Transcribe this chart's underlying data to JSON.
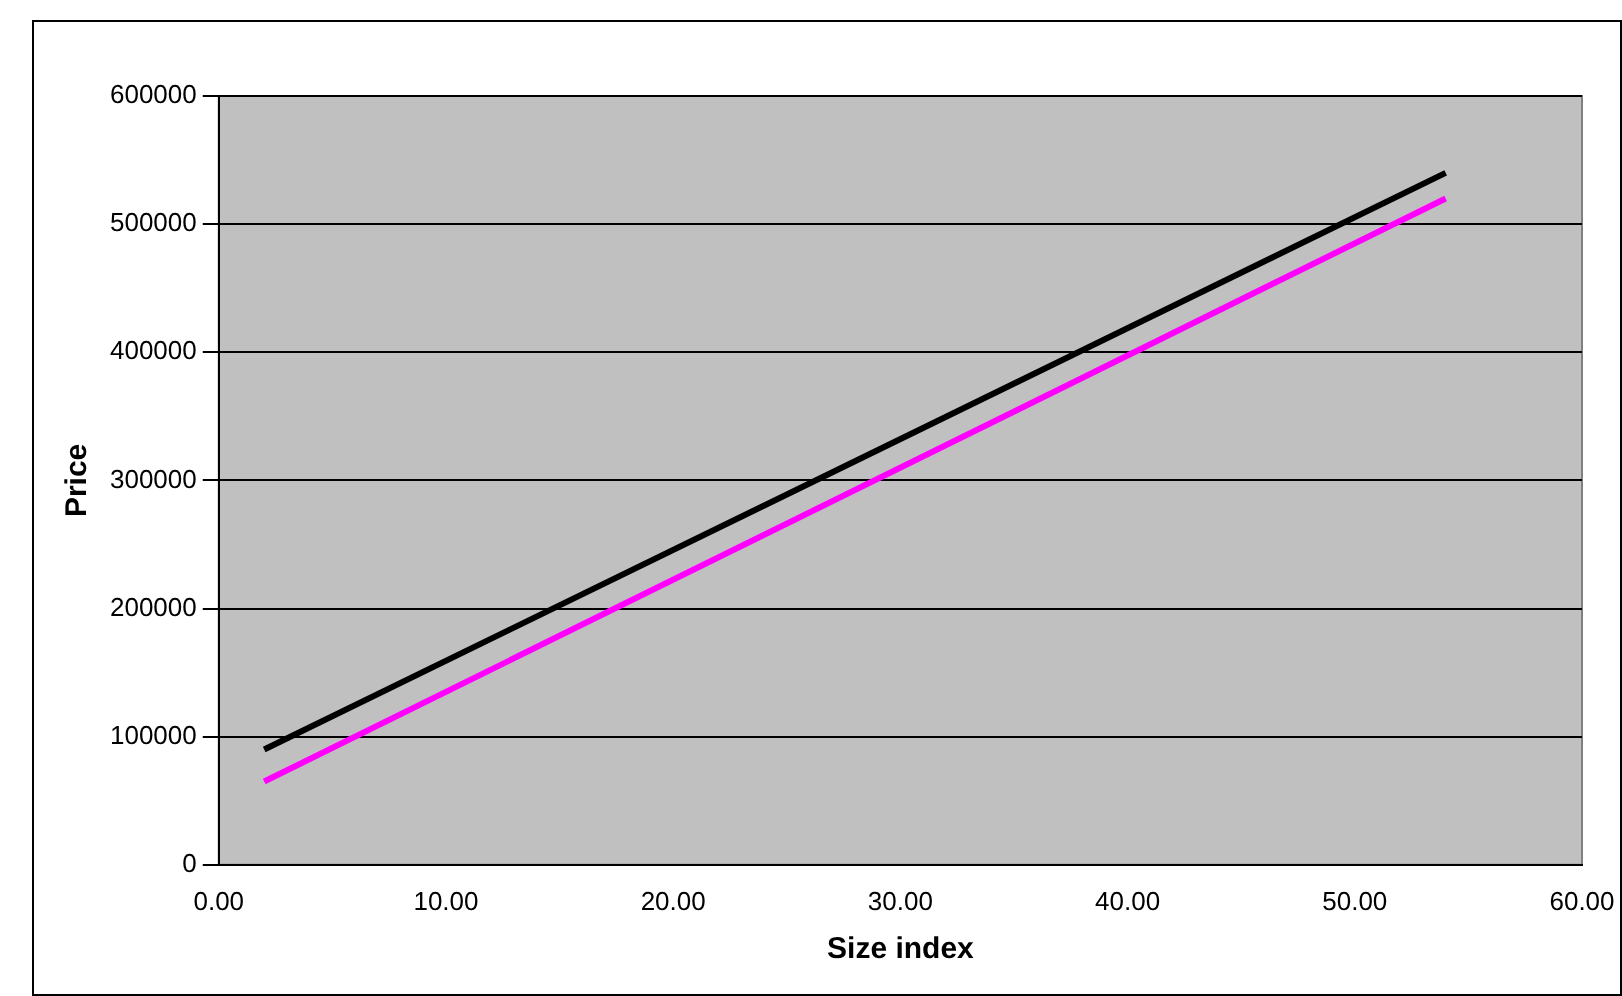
{
  "chart_data": {
    "type": "line",
    "xlabel": "Size index",
    "ylabel": "Price",
    "xlim": [
      0,
      60
    ],
    "xticks": [
      {
        "value": 0,
        "label": "0.00"
      },
      {
        "value": 10,
        "label": "10.00"
      },
      {
        "value": 20,
        "label": "20.00"
      },
      {
        "value": 30,
        "label": "30.00"
      },
      {
        "value": 40,
        "label": "40.00"
      },
      {
        "value": 50,
        "label": "50.00"
      },
      {
        "value": 60,
        "label": "60.00"
      }
    ],
    "ylim": [
      0,
      600000
    ],
    "yticks": [
      0,
      100000,
      200000,
      300000,
      400000,
      500000,
      600000
    ],
    "x": [
      2,
      54
    ],
    "series": [
      {
        "color": "#000000",
        "values": [
          90000,
          540000
        ]
      },
      {
        "color": "#ff00ff",
        "values": [
          65000,
          520000
        ]
      }
    ],
    "grid": "y",
    "legend": false,
    "marker": "none",
    "line_style": "solid"
  }
}
